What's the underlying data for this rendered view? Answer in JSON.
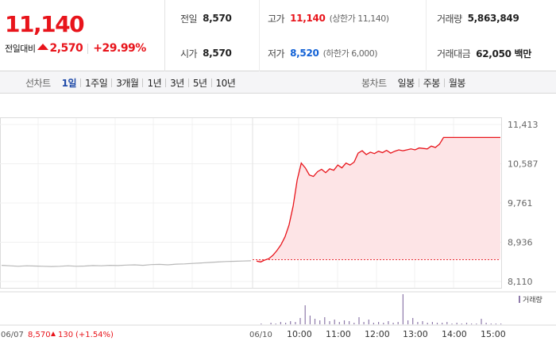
{
  "quote": {
    "price": "11,140",
    "change_label": "전일대비",
    "change": "2,570",
    "change_pct": "+29.99%",
    "direction_icon": "up-arrow-icon",
    "colors": {
      "up": "#e8141b",
      "down": "#1362d6"
    }
  },
  "stats": {
    "prev_close": {
      "label": "전일",
      "value": "8,570"
    },
    "open": {
      "label": "시가",
      "value": "8,570"
    },
    "high": {
      "label": "고가",
      "value": "11,140",
      "sub": "(상한가 11,140)"
    },
    "low": {
      "label": "저가",
      "value": "8,520",
      "sub": "(하한가 6,000)"
    },
    "volume": {
      "label": "거래량",
      "value": "5,863,849"
    },
    "amount": {
      "label": "거래대금",
      "value": "62,050 백만"
    }
  },
  "tabs": {
    "line_label": "선차트",
    "line_items": [
      "1일",
      "1주일",
      "3개월",
      "1년",
      "3년",
      "5년",
      "10년"
    ],
    "line_active": "1일",
    "candle_label": "봉차트",
    "candle_items": [
      "일봉",
      "주봉",
      "월봉"
    ]
  },
  "chart_data": {
    "type": "line",
    "ylim": [
      8110,
      11413
    ],
    "y_ticks": [
      "11,413",
      "10,587",
      "9,761",
      "8,936",
      "8,110"
    ],
    "x_ticks": [
      "06/10",
      "10:00",
      "11:00",
      "12:00",
      "13:00",
      "14:00",
      "15:00"
    ],
    "prev_day_label": "06/07",
    "prev_day_close": "8,570",
    "prev_day_change": "130",
    "prev_day_change_pct": "(+1.54%)",
    "prev_day_series": [
      8450,
      8440,
      8430,
      8440,
      8435,
      8430,
      8425,
      8430,
      8440,
      8430,
      8435,
      8445,
      8440,
      8450,
      8445,
      8455,
      8460,
      8450,
      8465,
      8470,
      8460,
      8475,
      8480,
      8490,
      8500,
      8510,
      8520,
      8530,
      8535,
      8540,
      8545
    ],
    "today_series": [
      8540,
      8520,
      8560,
      8590,
      8660,
      8760,
      8880,
      9050,
      9300,
      9700,
      10250,
      10600,
      10500,
      10350,
      10320,
      10420,
      10470,
      10400,
      10480,
      10450,
      10560,
      10500,
      10600,
      10560,
      10620,
      10810,
      10860,
      10780,
      10830,
      10800,
      10850,
      10820,
      10870,
      10810,
      10850,
      10880,
      10860,
      10880,
      10900,
      10880,
      10920,
      10910,
      10900,
      10960,
      10930,
      11000,
      11140,
      11140,
      11140,
      11140,
      11140,
      11140,
      11140,
      11140,
      11140,
      11140,
      11140,
      11140,
      11140,
      11140,
      11140
    ],
    "volume_legend": "거래량",
    "volume_series": [
      0,
      1,
      0,
      2,
      1,
      3,
      2,
      4,
      3,
      8,
      24,
      11,
      7,
      5,
      9,
      4,
      6,
      3,
      5,
      4,
      2,
      9,
      3,
      6,
      2,
      3,
      2,
      4,
      2,
      3,
      38,
      5,
      8,
      3,
      4,
      2,
      3,
      2,
      2,
      3,
      1,
      2,
      1,
      2,
      1,
      1,
      7,
      2,
      1,
      1,
      1
    ],
    "line_color": "#e8141b",
    "fill_color": "#fde4e6",
    "prev_line_color": "#b8b8b8",
    "volume_color": "#8e7aaa"
  }
}
